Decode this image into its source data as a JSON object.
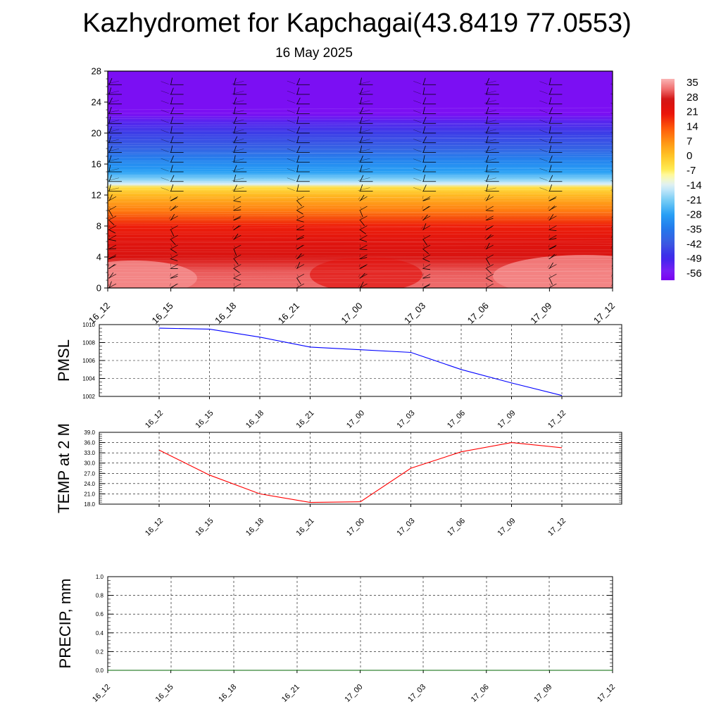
{
  "header": {
    "title": "Kazhydromet for Kapchagai(43.8419 77.0553)",
    "subtitle": "16 May 2025"
  },
  "chart_data": [
    {
      "type": "heatmap",
      "name": "temperature-height-section",
      "x_categories": [
        "16_12",
        "16_15",
        "16_18",
        "16_21",
        "17_00",
        "17_03",
        "17_06",
        "17_09",
        "17_12"
      ],
      "y_ticks": [
        "0",
        "4",
        "8",
        "12",
        "16",
        "20",
        "24",
        "28"
      ],
      "ylim": [
        0,
        28
      ],
      "colorbar": {
        "labels": [
          "35",
          "28",
          "21",
          "14",
          "7",
          "0",
          "-7",
          "-14",
          "-21",
          "-28",
          "-35",
          "-42",
          "-49",
          "-56"
        ],
        "range": [
          -60,
          38
        ]
      },
      "bands": [
        {
          "y_from": 0,
          "y_to": 4,
          "value": 33
        },
        {
          "y_from": 4,
          "y_to": 8,
          "value": 24
        },
        {
          "y_from": 8,
          "y_to": 12,
          "value": 8
        },
        {
          "y_from": 12,
          "y_to": 13.4,
          "value": -8
        },
        {
          "y_from": 13.4,
          "y_to": 17,
          "value": -28
        },
        {
          "y_from": 17,
          "y_to": 21.5,
          "value": -48
        },
        {
          "y_from": 21.5,
          "y_to": 28,
          "value": -58
        }
      ],
      "wind_barbs": true
    },
    {
      "type": "line",
      "name": "pmsl",
      "ylabel": "PMSL",
      "categories": [
        "16_12",
        "16_15",
        "16_18",
        "16_21",
        "17_00",
        "17_03",
        "17_06",
        "17_09",
        "17_12"
      ],
      "values": [
        1009.6,
        1009.5,
        1008.6,
        1007.5,
        1007.2,
        1006.9,
        1005.0,
        1003.5,
        1002.1
      ],
      "ylim": [
        1002,
        1010
      ],
      "y_ticks": [
        "1002",
        "1004",
        "1006",
        "1008",
        "1010"
      ],
      "color": "#0000ff"
    },
    {
      "type": "line",
      "name": "temp-2m",
      "ylabel": "TEMP at 2 M",
      "categories": [
        "16_12",
        "16_15",
        "16_18",
        "16_21",
        "17_00",
        "17_03",
        "17_06",
        "17_09",
        "17_12"
      ],
      "values": [
        33.8,
        26.5,
        21.0,
        18.5,
        18.7,
        28.5,
        33.3,
        36.0,
        34.5
      ],
      "ylim": [
        18,
        39
      ],
      "y_ticks": [
        "18.0",
        "21.0",
        "24.0",
        "27.0",
        "30.0",
        "33.0",
        "36.0",
        "39.0"
      ],
      "color": "#ff0000"
    },
    {
      "type": "line",
      "name": "precip",
      "ylabel": "PRECIP, mm",
      "categories": [
        "16_12",
        "16_15",
        "16_18",
        "16_21",
        "17_00",
        "17_03",
        "17_06",
        "17_09",
        "17_12"
      ],
      "values": [
        0,
        0,
        0,
        0,
        0,
        0,
        0,
        0,
        0
      ],
      "ylim": [
        0,
        1
      ],
      "y_ticks": [
        "0.0",
        "0.2",
        "0.4",
        "0.6",
        "0.8",
        "1.0"
      ],
      "color": "#006400"
    }
  ]
}
